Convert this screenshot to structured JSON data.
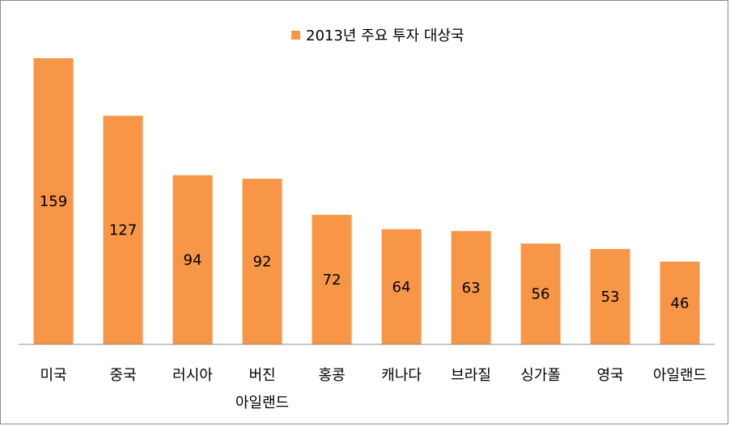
{
  "chart_data": {
    "type": "bar",
    "categories": [
      [
        "미국"
      ],
      [
        "중국"
      ],
      [
        "러시아"
      ],
      [
        "버진",
        "아일랜드"
      ],
      [
        "홍콩"
      ],
      [
        "캐나다"
      ],
      [
        "브라질"
      ],
      [
        "싱가폴"
      ],
      [
        "영국"
      ],
      [
        "아일랜드"
      ]
    ],
    "series": [
      {
        "name": "2013년 주요 투자 대상국",
        "color": "#f79646",
        "values": [
          159,
          127,
          94,
          92,
          72,
          64,
          63,
          56,
          53,
          46
        ]
      }
    ],
    "ylim": [
      0,
      160
    ],
    "grid": false,
    "legend": "top-center",
    "data_labels": "inside-center"
  }
}
